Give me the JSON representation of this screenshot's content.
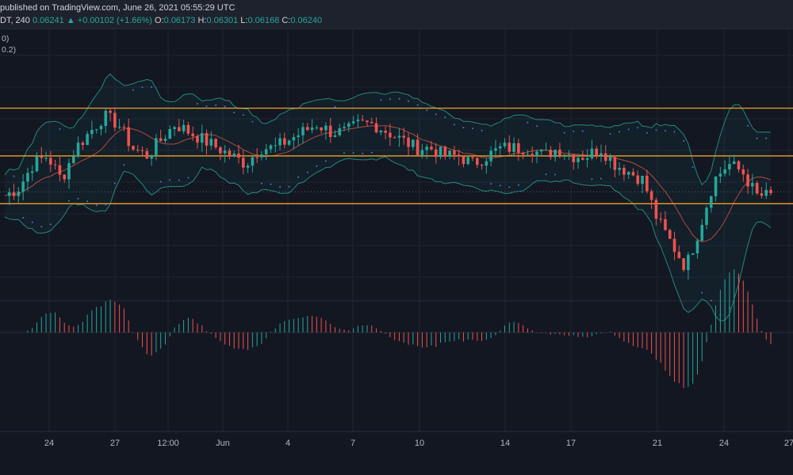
{
  "header": {
    "published": "published on TradingView.com, June 26, 2021 05:55:29 UTC",
    "symbol": "DT, 240",
    "last": "0.06241",
    "arrow": "▲",
    "change": "+0.00102 (+1.66%)",
    "o_label": "O:",
    "o_value": "0.06173",
    "h_label": "H:",
    "h_value": "0.06301",
    "l_label": "L:",
    "l_value": "0.06168",
    "c_label": "C:",
    "c_value": "0.06240"
  },
  "indicators": {
    "line1": "0)",
    "line2": "0.2)"
  },
  "xaxis": {
    "labels": [
      "24",
      "27",
      "12:00",
      "Jun",
      "4",
      "7",
      "10",
      "14",
      "17",
      "21",
      "24",
      "27"
    ]
  },
  "colors": {
    "up": "#26a69a",
    "down": "#ef5350",
    "level": "#f2a024",
    "band": "#22897f",
    "basis": "#b34a3f",
    "sar": "#4a7bd0"
  },
  "chart_data": {
    "type": "candlestick",
    "levels": [
      0.0632,
      0.0626,
      0.062
    ],
    "macd_zero_line": 0,
    "x_ticks": [
      "24",
      "27",
      "12:00",
      "Jun",
      "4",
      "7",
      "10",
      "14",
      "17",
      "21",
      "24",
      "27"
    ],
    "close_series": [
      0.0621,
      0.0622,
      0.0625,
      0.0626,
      0.0623,
      0.0627,
      0.0629,
      0.0631,
      0.063,
      0.0627,
      0.0626,
      0.0628,
      0.063,
      0.0629,
      0.0628,
      0.0627,
      0.0626,
      0.0625,
      0.0627,
      0.0627,
      0.0628,
      0.0629,
      0.063,
      0.0629,
      0.0629,
      0.063,
      0.063,
      0.0629,
      0.0628,
      0.0627,
      0.0627,
      0.0626,
      0.0626,
      0.0625,
      0.0626,
      0.0627,
      0.0627,
      0.0627,
      0.0626,
      0.0627,
      0.0626,
      0.0626,
      0.0627,
      0.0625,
      0.0624,
      0.0623,
      0.0618,
      0.0615,
      0.0612,
      0.0617,
      0.0623,
      0.0625,
      0.0624,
      0.0621,
      0.0621
    ]
  }
}
